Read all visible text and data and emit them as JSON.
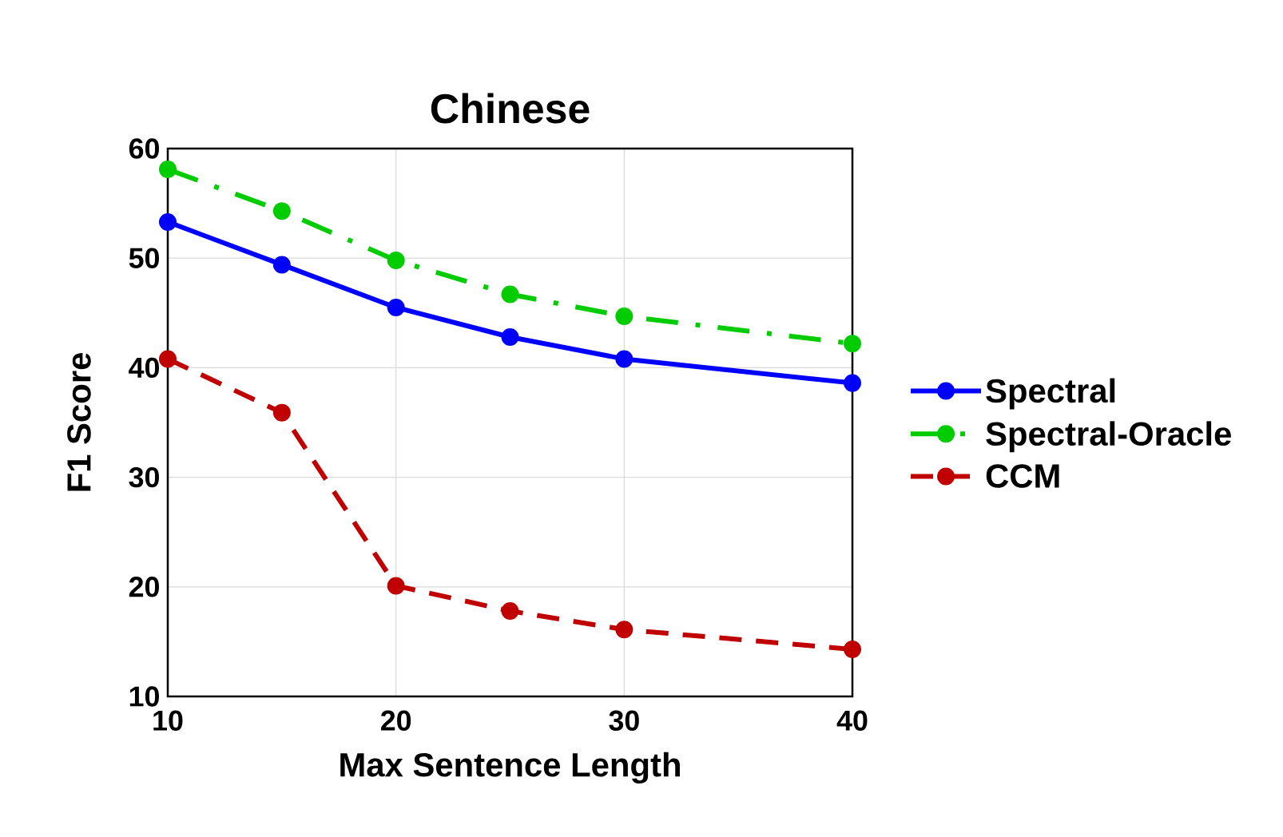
{
  "chart_data": {
    "type": "line",
    "title": "Chinese",
    "xlabel": "Max Sentence Length",
    "ylabel": "F1 Score",
    "xlim": [
      10,
      40
    ],
    "ylim": [
      10,
      60
    ],
    "xticks": [
      10,
      20,
      30,
      40
    ],
    "yticks": [
      10,
      20,
      30,
      40,
      50,
      60
    ],
    "grid": true,
    "legend": "right",
    "marker": "circle",
    "x": [
      10,
      15,
      20,
      25,
      30,
      40
    ],
    "series": [
      {
        "name": "Spectral",
        "color": "#0000ff",
        "line_style": "solid",
        "values": [
          53.3,
          49.4,
          45.5,
          42.8,
          40.8,
          38.6
        ]
      },
      {
        "name": "Spectral-Oracle",
        "color": "#00cc00",
        "line_style": "dashdot",
        "values": [
          58.1,
          54.3,
          49.8,
          46.7,
          44.7,
          42.2
        ]
      },
      {
        "name": "CCM",
        "color": "#c00000",
        "line_style": "dashed",
        "values": [
          40.8,
          35.9,
          20.1,
          17.8,
          16.1,
          14.3
        ]
      }
    ]
  }
}
